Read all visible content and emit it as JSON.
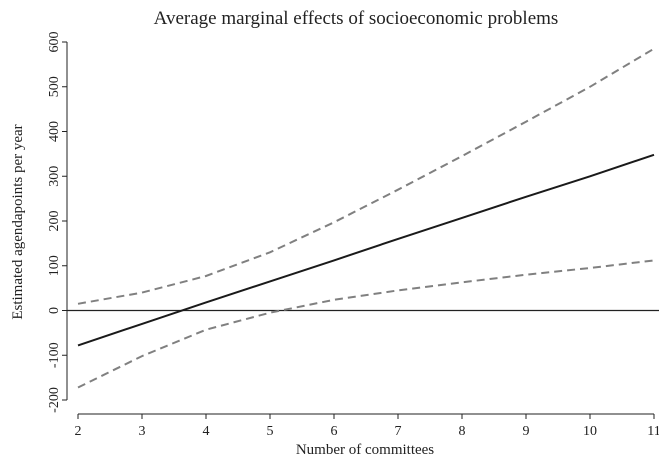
{
  "chart_data": {
    "type": "line",
    "title": "Average marginal effects of socioeconomic problems",
    "xlabel": "Number of committees",
    "ylabel": "Estimated agendapoints per year",
    "x": [
      2,
      3,
      4,
      5,
      6,
      7,
      8,
      9,
      10,
      11
    ],
    "xticks": [
      2,
      3,
      4,
      5,
      6,
      7,
      8,
      9,
      10,
      11
    ],
    "yticks": [
      -200,
      -100,
      0,
      100,
      200,
      300,
      400,
      500,
      600
    ],
    "xlim": [
      2,
      11
    ],
    "ylim": [
      -200,
      600
    ],
    "grid": false,
    "reference_line": 0,
    "series": [
      {
        "style": "solid",
        "color": "#1a1a1a",
        "values": [
          -78,
          -30,
          18,
          65,
          112,
          160,
          207,
          254,
          300,
          348
        ]
      },
      {
        "style": "dashed",
        "color": "#808080",
        "values": [
          15,
          40,
          77,
          130,
          197,
          270,
          345,
          422,
          500,
          585
        ]
      },
      {
        "style": "dashed",
        "color": "#808080",
        "values": [
          -172,
          -102,
          -43,
          -5,
          24,
          45,
          63,
          80,
          95,
          112
        ]
      }
    ]
  }
}
